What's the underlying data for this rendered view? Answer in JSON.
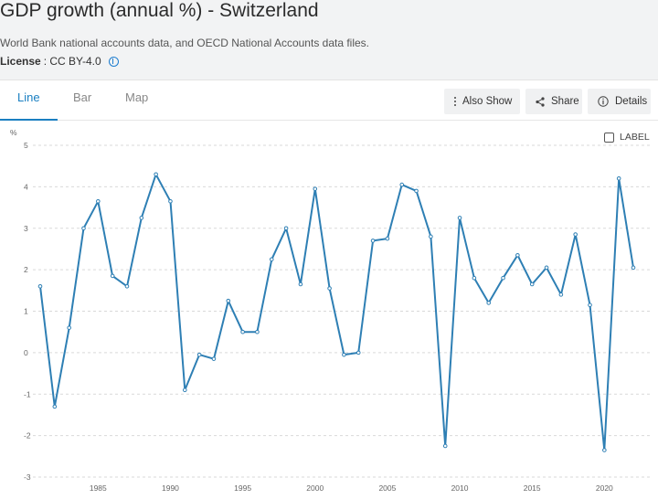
{
  "header": {
    "title": "GDP growth (annual %) - Switzerland",
    "source": "World Bank national accounts data, and OECD National Accounts data files.",
    "license_label": "License",
    "license_value": ": CC BY-4.0"
  },
  "tabs": [
    {
      "label": "Line",
      "active": true
    },
    {
      "label": "Bar",
      "active": false
    },
    {
      "label": "Map",
      "active": false
    }
  ],
  "toolbar": {
    "also_show_label": "Also Show",
    "share_label": "Share",
    "details_label": "Details"
  },
  "label_toggle": {
    "label": "LABEL",
    "checked": false
  },
  "colors": {
    "line": "#2e7fb4",
    "accent": "#1a7fc1",
    "grid": "#d9d9d9"
  },
  "chart_data": {
    "type": "line",
    "ylabel": "%",
    "ylim": [
      -3,
      5
    ],
    "yticks": [
      5,
      4,
      3,
      2,
      1,
      0,
      -1,
      -2,
      -3
    ],
    "xlim": [
      1980,
      2023
    ],
    "xticks": [
      1985,
      1990,
      1995,
      2000,
      2005,
      2010,
      2015,
      2020
    ],
    "grid": true,
    "series": [
      {
        "x": [
          1981,
          1982,
          1983,
          1984,
          1985,
          1986,
          1987,
          1988,
          1989,
          1990,
          1991,
          1992,
          1993,
          1994,
          1995,
          1996,
          1997,
          1998,
          1999,
          2000,
          2001,
          2002,
          2003,
          2004,
          2005,
          2006,
          2007,
          2008,
          2009,
          2010,
          2011,
          2012,
          2013,
          2014,
          2015,
          2016,
          2017,
          2018,
          2019,
          2020,
          2021,
          2022
        ],
        "values": [
          1.6,
          -1.3,
          0.6,
          3.0,
          3.65,
          1.85,
          1.6,
          3.25,
          4.3,
          3.65,
          -0.9,
          -0.05,
          -0.15,
          1.25,
          0.5,
          0.5,
          2.25,
          3.0,
          1.65,
          3.95,
          1.55,
          -0.05,
          0.0,
          2.7,
          2.75,
          4.05,
          3.9,
          2.8,
          -2.25,
          3.25,
          1.8,
          1.2,
          1.8,
          2.35,
          1.65,
          2.05,
          1.4,
          2.85,
          1.15,
          -2.35,
          4.2,
          2.05
        ]
      }
    ]
  }
}
